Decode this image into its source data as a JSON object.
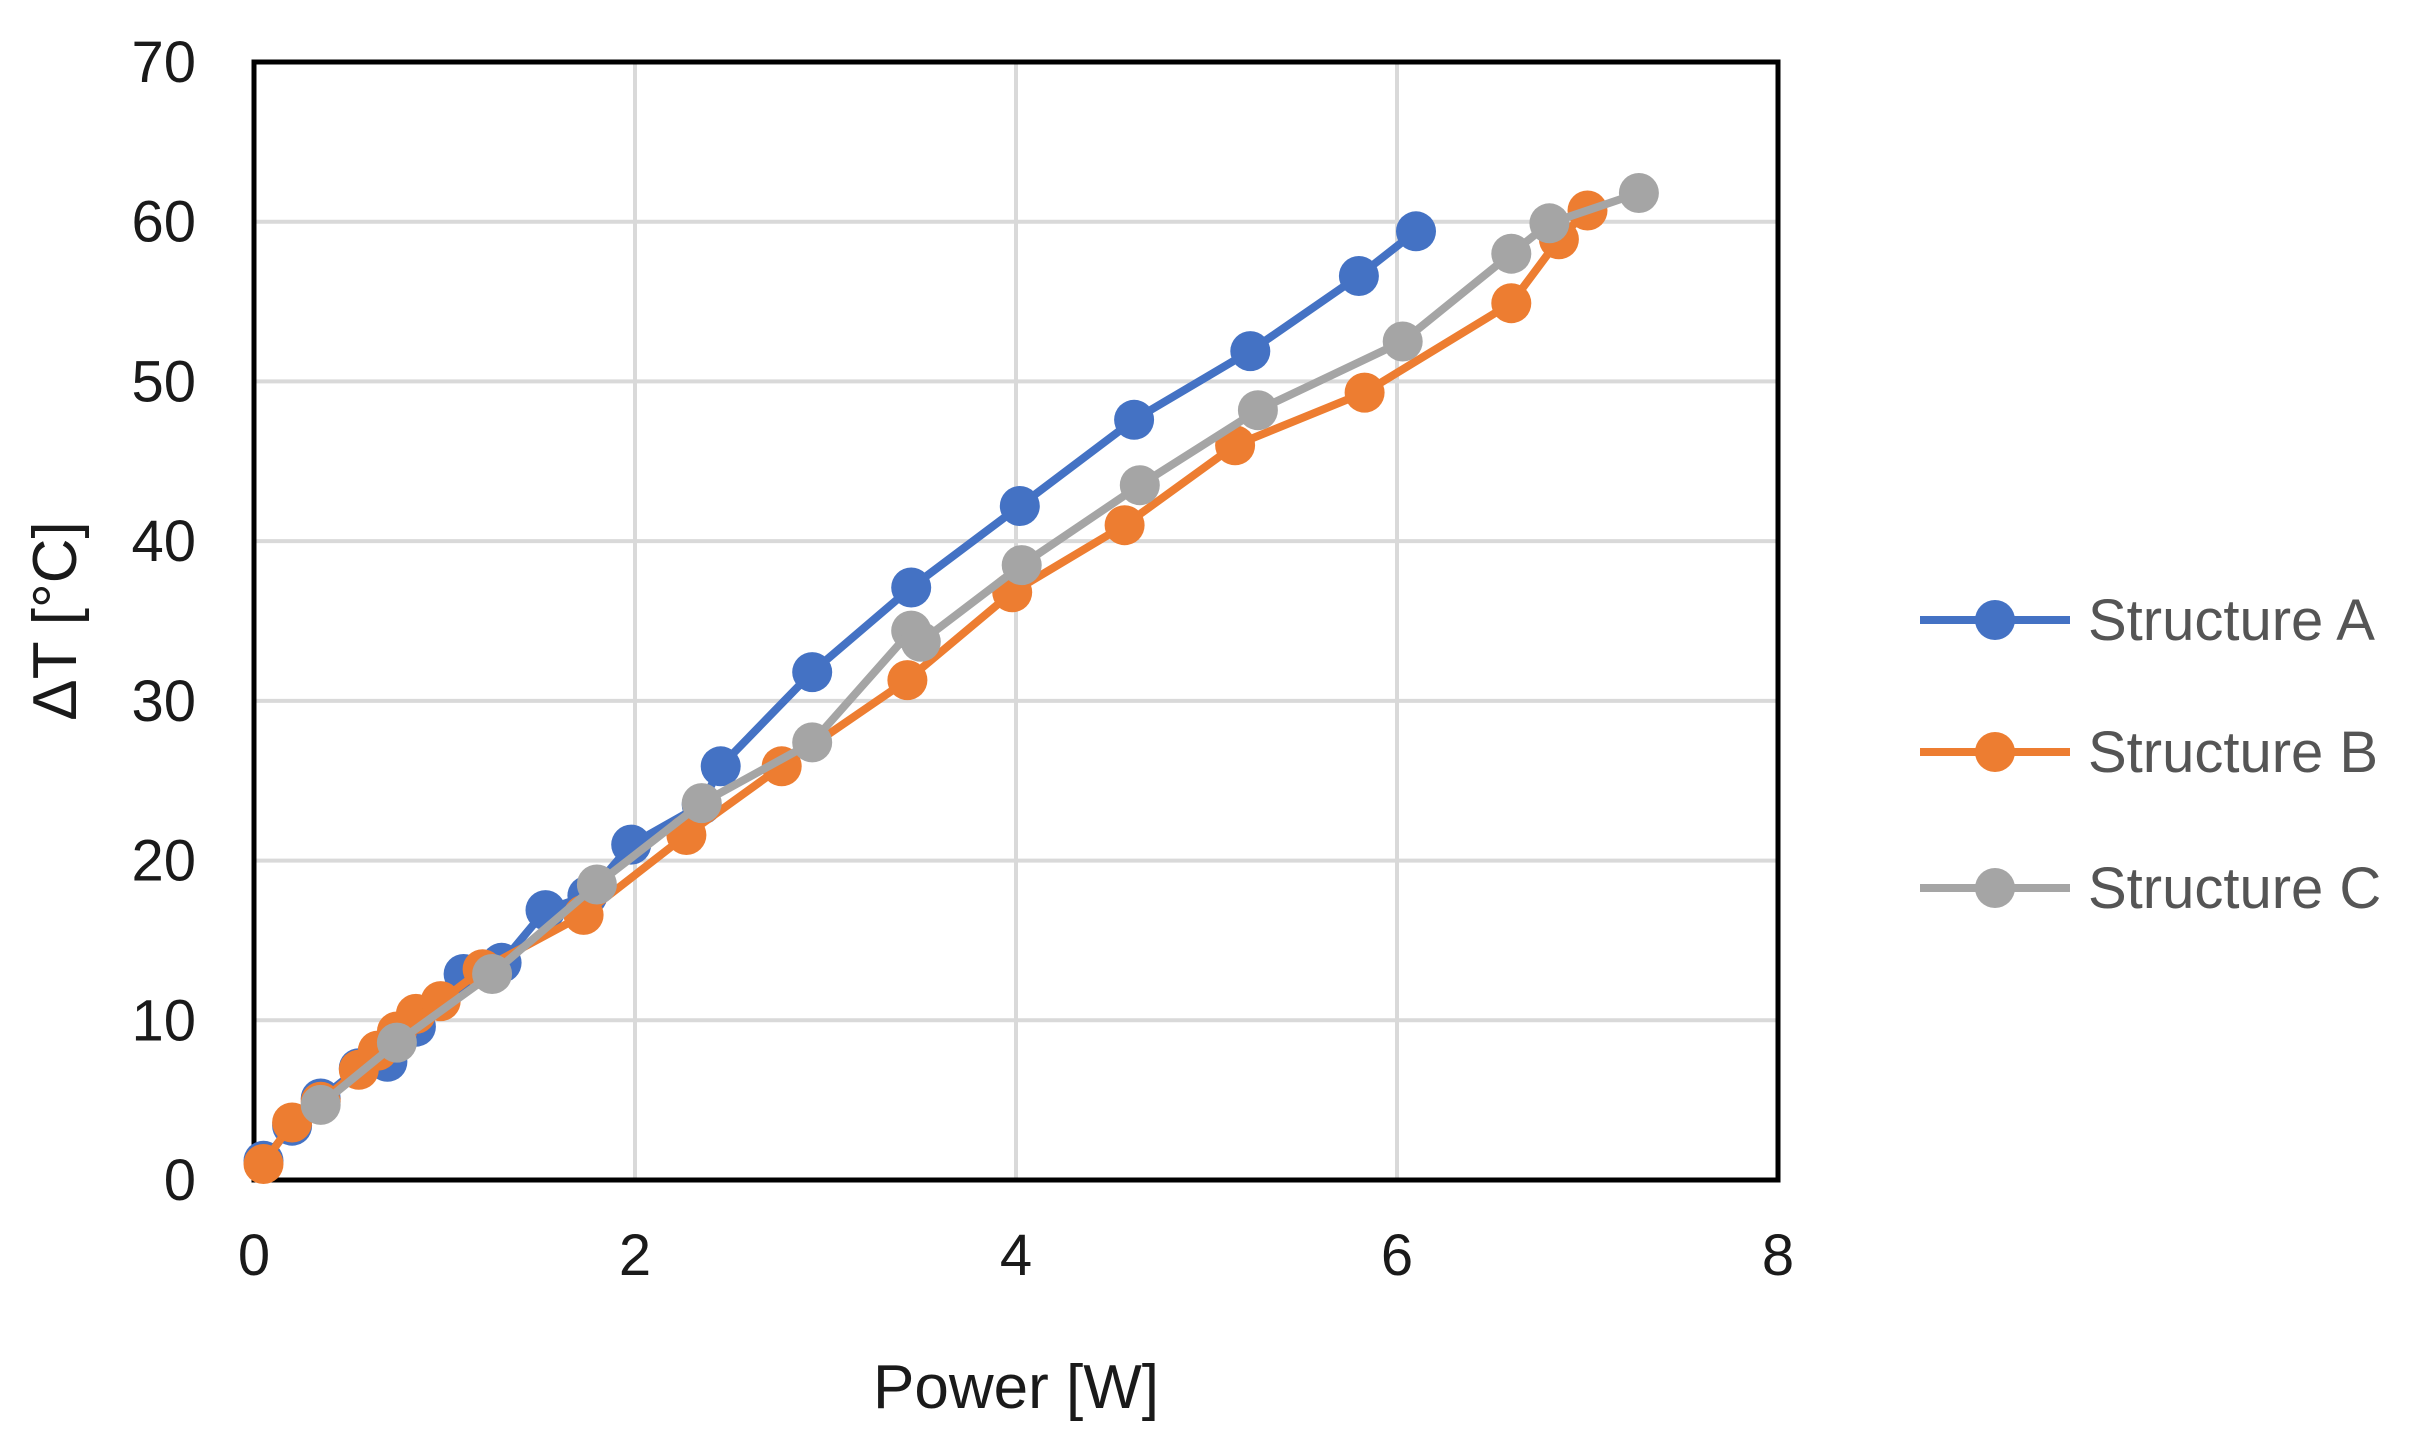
{
  "chart_data": {
    "type": "line",
    "title": "",
    "xlabel": "Power [W]",
    "ylabel": "ΔT [°C]",
    "xlim": [
      0,
      8
    ],
    "ylim": [
      0,
      70
    ],
    "xticks": [
      "0",
      "2",
      "4",
      "6",
      "8"
    ],
    "yticks": [
      "0",
      "10",
      "20",
      "30",
      "40",
      "50",
      "60",
      "70"
    ],
    "grid": true,
    "legend_position": "right",
    "series": [
      {
        "name": "Structure A",
        "color": "#4472C4",
        "points": [
          [
            0.05,
            1.2
          ],
          [
            0.2,
            3.4
          ],
          [
            0.35,
            5.1
          ],
          [
            0.55,
            7.0
          ],
          [
            0.7,
            7.4
          ],
          [
            0.85,
            9.6
          ],
          [
            1.1,
            12.9
          ],
          [
            1.3,
            13.6
          ],
          [
            1.53,
            16.9
          ],
          [
            1.75,
            17.8
          ],
          [
            1.98,
            21.0
          ],
          [
            2.35,
            23.5
          ],
          [
            2.45,
            25.9
          ],
          [
            2.93,
            31.8
          ],
          [
            3.45,
            37.1
          ],
          [
            4.02,
            42.2
          ],
          [
            4.62,
            47.6
          ],
          [
            5.23,
            51.9
          ],
          [
            5.8,
            56.6
          ],
          [
            6.1,
            59.4
          ]
        ]
      },
      {
        "name": "Structure B",
        "color": "#ED7D31",
        "points": [
          [
            0.05,
            1.0
          ],
          [
            0.2,
            3.6
          ],
          [
            0.35,
            4.9
          ],
          [
            0.55,
            6.9
          ],
          [
            0.65,
            8.1
          ],
          [
            0.75,
            9.3
          ],
          [
            0.85,
            10.4
          ],
          [
            0.98,
            11.2
          ],
          [
            1.2,
            13.2
          ],
          [
            1.73,
            16.6
          ],
          [
            2.27,
            21.6
          ],
          [
            2.77,
            25.9
          ],
          [
            3.43,
            31.3
          ],
          [
            3.98,
            36.8
          ],
          [
            4.57,
            41.0
          ],
          [
            5.15,
            46.0
          ],
          [
            5.83,
            49.3
          ],
          [
            6.6,
            54.9
          ],
          [
            6.85,
            58.9
          ],
          [
            7.0,
            60.7
          ]
        ]
      },
      {
        "name": "Structure C",
        "color": "#A5A5A5",
        "points": [
          [
            0.35,
            4.7
          ],
          [
            0.75,
            8.6
          ],
          [
            1.25,
            12.9
          ],
          [
            1.8,
            18.5
          ],
          [
            2.35,
            23.6
          ],
          [
            2.93,
            27.4
          ],
          [
            3.45,
            34.4
          ],
          [
            3.5,
            33.7
          ],
          [
            4.03,
            38.5
          ],
          [
            4.65,
            43.5
          ],
          [
            5.27,
            48.2
          ],
          [
            6.03,
            52.5
          ],
          [
            6.6,
            58.0
          ],
          [
            6.8,
            59.9
          ],
          [
            7.27,
            61.8
          ]
        ]
      }
    ]
  }
}
